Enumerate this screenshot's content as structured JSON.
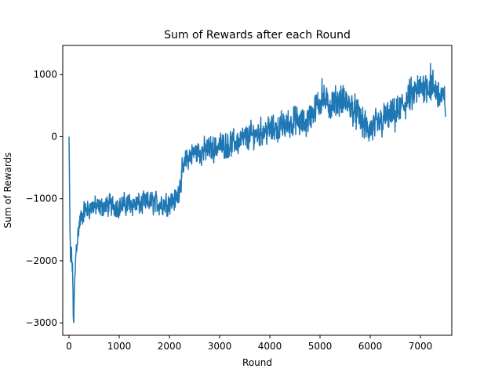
{
  "chart_data": {
    "type": "line",
    "title": "Sum of Rewards after each Round",
    "xlabel": "Round",
    "ylabel": "Sum of Rewards",
    "xlim": [
      -125,
      7625
    ],
    "ylim": [
      -3200,
      1470
    ],
    "xticks": [
      0,
      1000,
      2000,
      3000,
      4000,
      5000,
      6000,
      7000
    ],
    "yticks": [
      -3000,
      -2000,
      -1000,
      0,
      1000
    ],
    "grid": false,
    "legend": "none",
    "series": [
      {
        "color": "#1f77b4",
        "trend": [
          [
            0,
            0
          ],
          [
            15,
            -1400
          ],
          [
            30,
            -2100
          ],
          [
            50,
            -1900
          ],
          [
            70,
            -2200
          ],
          [
            90,
            -2950
          ],
          [
            110,
            -2400
          ],
          [
            140,
            -1800
          ],
          [
            180,
            -1550
          ],
          [
            220,
            -1350
          ],
          [
            300,
            -1200
          ],
          [
            400,
            -1150
          ],
          [
            500,
            -1120
          ],
          [
            600,
            -1150
          ],
          [
            800,
            -1100
          ],
          [
            1000,
            -1120
          ],
          [
            1200,
            -1080
          ],
          [
            1400,
            -1100
          ],
          [
            1600,
            -1050
          ],
          [
            1800,
            -1080
          ],
          [
            2000,
            -1060
          ],
          [
            2150,
            -1000
          ],
          [
            2250,
            -600
          ],
          [
            2350,
            -350
          ],
          [
            2500,
            -250
          ],
          [
            2700,
            -230
          ],
          [
            3000,
            -150
          ],
          [
            3300,
            -100
          ],
          [
            3600,
            0
          ],
          [
            3900,
            100
          ],
          [
            4200,
            150
          ],
          [
            4500,
            250
          ],
          [
            4700,
            200
          ],
          [
            4900,
            450
          ],
          [
            5050,
            600
          ],
          [
            5200,
            500
          ],
          [
            5400,
            600
          ],
          [
            5600,
            500
          ],
          [
            5800,
            300
          ],
          [
            5950,
            100
          ],
          [
            6100,
            150
          ],
          [
            6300,
            300
          ],
          [
            6500,
            350
          ],
          [
            6700,
            550
          ],
          [
            6900,
            700
          ],
          [
            7100,
            850
          ],
          [
            7300,
            750
          ],
          [
            7500,
            550
          ]
        ],
        "noise_amplitude": [
          [
            0,
            150
          ],
          [
            200,
            150
          ],
          [
            2200,
            180
          ],
          [
            3500,
            200
          ],
          [
            4500,
            220
          ],
          [
            5500,
            230
          ],
          [
            7500,
            260
          ]
        ],
        "extremes": [
          [
            0,
            0
          ],
          [
            90,
            -3000
          ],
          [
            7200,
            1250
          ],
          [
            5040,
            1000
          ],
          [
            4220,
            480
          ]
        ]
      }
    ]
  }
}
